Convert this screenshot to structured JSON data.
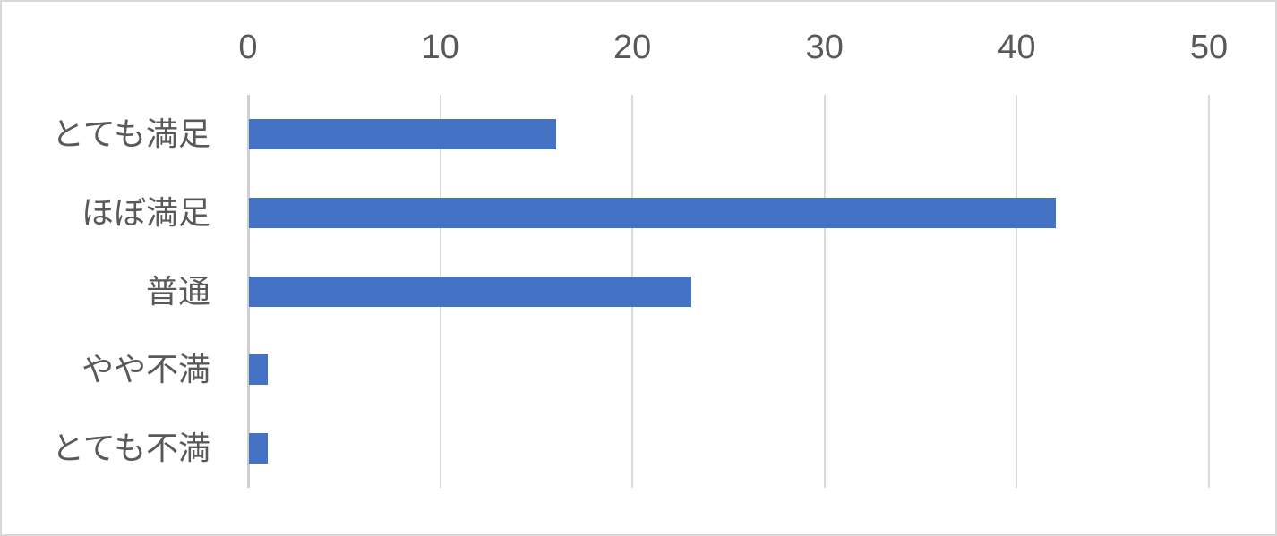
{
  "chart_data": {
    "type": "bar",
    "orientation": "horizontal",
    "title": "",
    "xlabel": "",
    "ylabel": "",
    "categories": [
      "とても満足",
      "ほぼ満足",
      "普通",
      "やや不満",
      "とても不満"
    ],
    "values": [
      16,
      42,
      23,
      1,
      1
    ],
    "xlim": [
      0,
      50
    ],
    "xticks": [
      0,
      10,
      20,
      30,
      40,
      50
    ],
    "tick_labels": [
      "0",
      "10",
      "20",
      "30",
      "40",
      "50"
    ],
    "tick_label_position": "top",
    "grid": true,
    "legend": false,
    "colors": {
      "bar": "#4472C4",
      "gridline": "#DADADA",
      "axis_line": "#CFCFCF",
      "text": "#595959",
      "frame_border": "#D8D8D8",
      "background": "#FFFFFF"
    }
  }
}
